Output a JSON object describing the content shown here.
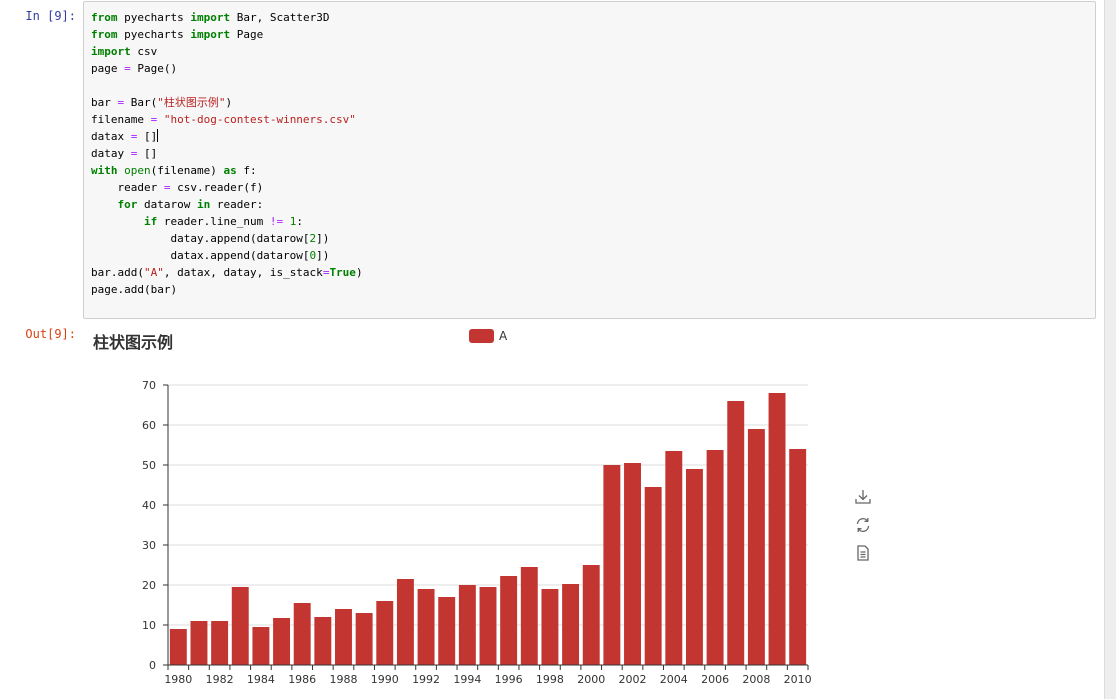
{
  "cell": {
    "in_prompt": "In  [9]:",
    "out_prompt": "Out[9]:",
    "code_lines": [
      [
        [
          "kw",
          "from"
        ],
        [
          "t",
          " pyecharts "
        ],
        [
          "kw",
          "import"
        ],
        [
          "t",
          " Bar, Scatter3D"
        ]
      ],
      [
        [
          "kw",
          "from"
        ],
        [
          "t",
          " pyecharts "
        ],
        [
          "kw",
          "import"
        ],
        [
          "t",
          " Page"
        ]
      ],
      [
        [
          "kw",
          "import"
        ],
        [
          "t",
          " csv"
        ]
      ],
      [
        [
          "t",
          "page "
        ],
        [
          "op",
          "="
        ],
        [
          "t",
          " Page()"
        ]
      ],
      [],
      [
        [
          "t",
          "bar "
        ],
        [
          "op",
          "="
        ],
        [
          "t",
          " Bar("
        ],
        [
          "str",
          "\"柱状图示例\""
        ],
        [
          "t",
          ")"
        ]
      ],
      [
        [
          "t",
          "filename "
        ],
        [
          "op",
          "="
        ],
        [
          "t",
          " "
        ],
        [
          "str",
          "\"hot-dog-contest-winners.csv\""
        ]
      ],
      [
        [
          "t",
          "datax "
        ],
        [
          "op",
          "="
        ],
        [
          "t",
          " []"
        ],
        [
          "cursor",
          ""
        ]
      ],
      [
        [
          "t",
          "datay "
        ],
        [
          "op",
          "="
        ],
        [
          "t",
          " []"
        ]
      ],
      [
        [
          "kw",
          "with"
        ],
        [
          "t",
          " "
        ],
        [
          "bi",
          "open"
        ],
        [
          "t",
          "(filename) "
        ],
        [
          "kw",
          "as"
        ],
        [
          "t",
          " f:"
        ]
      ],
      [
        [
          "t",
          "    reader "
        ],
        [
          "op",
          "="
        ],
        [
          "t",
          " csv.reader(f)"
        ]
      ],
      [
        [
          "t",
          "    "
        ],
        [
          "kw",
          "for"
        ],
        [
          "t",
          " datarow "
        ],
        [
          "kw",
          "in"
        ],
        [
          "t",
          " reader:"
        ]
      ],
      [
        [
          "t",
          "        "
        ],
        [
          "kw",
          "if"
        ],
        [
          "t",
          " reader.line_num "
        ],
        [
          "op",
          "!="
        ],
        [
          "t",
          " "
        ],
        [
          "num",
          "1"
        ],
        [
          "t",
          ":"
        ]
      ],
      [
        [
          "t",
          "            datay.append(datarow["
        ],
        [
          "num",
          "2"
        ],
        [
          "t",
          "])"
        ]
      ],
      [
        [
          "t",
          "            datax.append(datarow["
        ],
        [
          "num",
          "0"
        ],
        [
          "t",
          "])"
        ]
      ],
      [
        [
          "t",
          "bar.add("
        ],
        [
          "str",
          "\"A\""
        ],
        [
          "t",
          ", datax, datay, is_stack"
        ],
        [
          "op",
          "="
        ],
        [
          "kw",
          "True"
        ],
        [
          "t",
          ")"
        ]
      ],
      [
        [
          "t",
          "page.add(bar)"
        ]
      ]
    ]
  },
  "toolbox": {
    "icons": [
      "download-icon",
      "refresh-icon",
      "data-view-icon"
    ]
  },
  "chart_data": {
    "type": "bar",
    "title": "柱状图示例",
    "legend": [
      "A"
    ],
    "legend_position": "top-center",
    "color": "#c23531",
    "ylim": [
      0,
      70
    ],
    "yticks": [
      0,
      10,
      20,
      30,
      40,
      50,
      60,
      70
    ],
    "grid": true,
    "x_tick_labels": [
      "1980",
      "1982",
      "1984",
      "1986",
      "1988",
      "1990",
      "1992",
      "1994",
      "1996",
      "1998",
      "2000",
      "2002",
      "2004",
      "2006",
      "2008",
      "2010"
    ],
    "categories": [
      "1980",
      "1981",
      "1982",
      "1983",
      "1984",
      "1985",
      "1986",
      "1987",
      "1988",
      "1989",
      "1990",
      "1991",
      "1992",
      "1993",
      "1994",
      "1995",
      "1996",
      "1997",
      "1998",
      "1999",
      "2000",
      "2001",
      "2002",
      "2003",
      "2004",
      "2005",
      "2006",
      "2007",
      "2008",
      "2009",
      "2010"
    ],
    "series": [
      {
        "name": "A",
        "values": [
          9,
          11,
          11,
          19.5,
          9.5,
          11.75,
          15.5,
          12,
          14,
          13,
          16,
          21.5,
          19,
          17,
          20,
          19.5,
          22.25,
          24.5,
          19,
          20.25,
          25,
          50,
          50.5,
          44.5,
          53.5,
          49,
          53.75,
          66,
          59,
          68,
          54
        ]
      }
    ]
  }
}
